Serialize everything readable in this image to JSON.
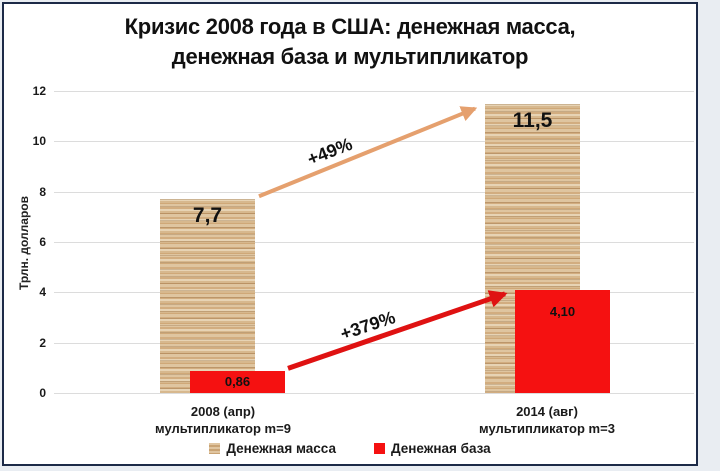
{
  "frame": {
    "border_color": "#1c2a47",
    "outer_background": "#e9edf2"
  },
  "chart_data": {
    "type": "bar",
    "title_line1": "Кризис 2008 года в США: денежная масса,",
    "title_line2": "денежная база и мультипликатор",
    "ylabel": "Трлн. долларов",
    "ylim": [
      0,
      12
    ],
    "yticks": [
      0,
      2,
      4,
      6,
      8,
      10,
      12
    ],
    "grid": true,
    "legend_position": "bottom",
    "categories": [
      {
        "line1": "2008 (апр)",
        "line2": "мультипликатор m=9"
      },
      {
        "line1": "2014 (авг)",
        "line2": "мультипликатор m=3"
      }
    ],
    "series": [
      {
        "name": "Денежная масса",
        "color": "#d5b28d",
        "texture": "wood",
        "values": [
          7.7,
          11.5
        ],
        "value_labels": [
          "7,7",
          "11,5"
        ]
      },
      {
        "name": "Денежная база",
        "color": "#f51111",
        "values": [
          0.86,
          4.1
        ],
        "value_labels": [
          "0,86",
          "4,10"
        ]
      }
    ],
    "annotations": [
      {
        "text": "+49%",
        "color": "#e5a06e",
        "series": 0
      },
      {
        "text": "+379%",
        "color": "#df1212",
        "series": 1
      }
    ]
  }
}
